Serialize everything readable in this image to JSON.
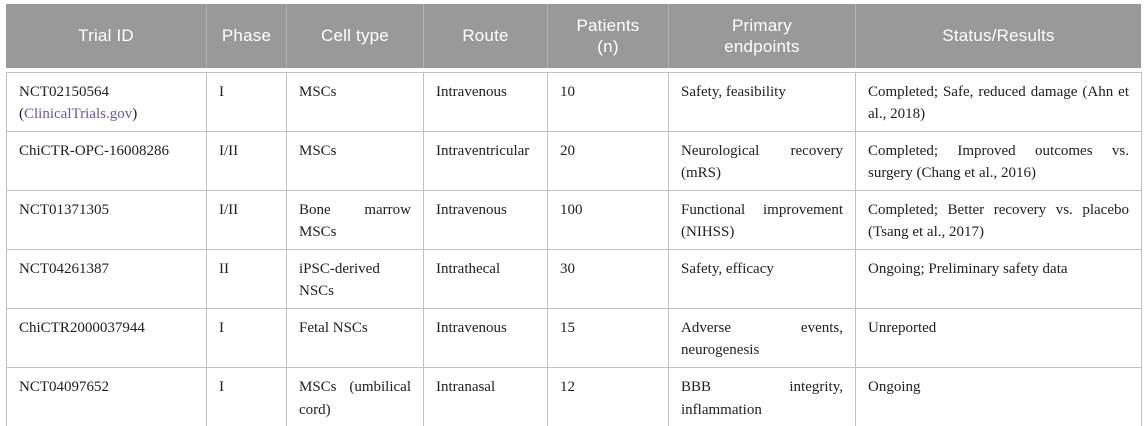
{
  "colors": {
    "header_bg": "#999999",
    "header_text": "#ffffff",
    "grid_border": "#c2c2c2",
    "body_text": "#212121",
    "link": "#6158ae"
  },
  "header": {
    "labels": [
      "Trial ID",
      "Phase",
      "Cell type",
      "Route",
      "Patients\n(n)",
      "Primary\nendpoints",
      "Status/Results"
    ]
  },
  "rows": [
    {
      "id": "NCT02150564",
      "link_open": "(",
      "link": "ClinicalTrials.gov",
      "link_close": ")",
      "phase": "I",
      "cell_type": "MSCs",
      "route": "Intravenous",
      "patients": "10",
      "endpoints": "Safety, feasibility",
      "status": "Completed; Safe, reduced damage (Ahn et al., 2018)"
    },
    {
      "id": "ChiCTR-OPC-16008286",
      "phase": "I/II",
      "cell_type": "MSCs",
      "route": "Intraventricular",
      "patients": "20",
      "endpoints": "Neurological recovery (mRS)",
      "status": "Completed; Improved outcomes vs. surgery (Chang et al., 2016)"
    },
    {
      "id": "NCT01371305",
      "phase": "I/II",
      "cell_type": "Bone marrow MSCs",
      "route": "Intravenous",
      "patients": "100",
      "endpoints": "Functional improvement (NIHSS)",
      "status": "Completed; Better recovery vs. placebo (Tsang et al., 2017)"
    },
    {
      "id": "NCT04261387",
      "phase": "II",
      "cell_type": "iPSC-derived NSCs",
      "route": "Intrathecal",
      "patients": "30",
      "endpoints": "Safety, efficacy",
      "status": "Ongoing; Preliminary safety data"
    },
    {
      "id": "ChiCTR2000037944",
      "phase": "I",
      "cell_type": "Fetal NSCs",
      "route": "Intravenous",
      "patients": "15",
      "endpoints": "Adverse events, neurogenesis",
      "status": "Unreported"
    },
    {
      "id": "NCT04097652",
      "phase": "I",
      "cell_type": "MSCs (umbilical cord)",
      "route": "Intranasal",
      "patients": "12",
      "endpoints": "BBB integrity, inflammation",
      "status": "Ongoing"
    }
  ]
}
